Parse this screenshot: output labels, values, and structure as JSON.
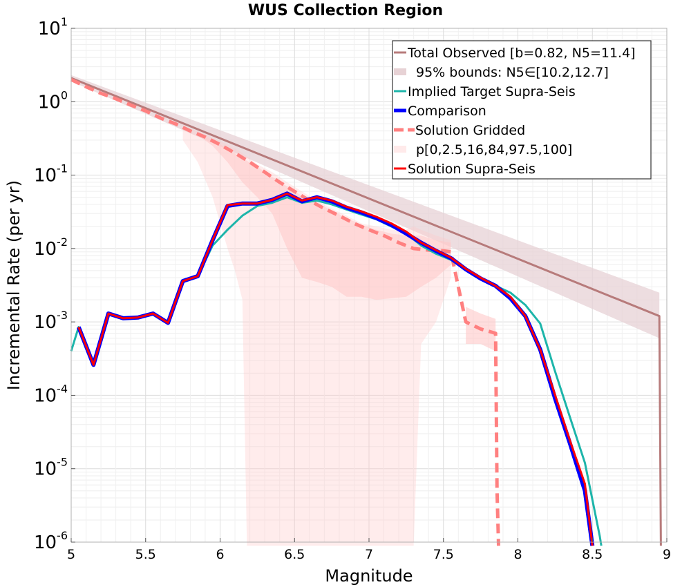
{
  "chart_data": {
    "type": "line",
    "title": "WUS Collection Region",
    "xlabel": "Magnitude",
    "ylabel": "Incremental Rate (per yr)",
    "xlim": [
      5,
      9
    ],
    "ylim_exponents": [
      -6,
      1
    ],
    "y_scale": "log",
    "grid": true,
    "legend_position": "top-right",
    "x_ticks": [
      "5",
      "5.5",
      "6",
      "6.5",
      "7",
      "7.5",
      "8",
      "8.5",
      "9"
    ],
    "y_ticks": [
      {
        "base": "10",
        "exp": "-6"
      },
      {
        "base": "10",
        "exp": "-5"
      },
      {
        "base": "10",
        "exp": "-4"
      },
      {
        "base": "10",
        "exp": "-3"
      },
      {
        "base": "10",
        "exp": "-2"
      },
      {
        "base": "10",
        "exp": "-1"
      },
      {
        "base": "10",
        "exp": "0"
      },
      {
        "base": "10",
        "exp": "1"
      }
    ],
    "legend": [
      {
        "label": "Total Observed [b=0.82, N5=11.4]",
        "key": "total_observed"
      },
      {
        "label": "95% bounds: N5∈[10.2,12.7]",
        "key": "total_bounds"
      },
      {
        "label": "Implied Target Supra-Seis",
        "key": "implied_target"
      },
      {
        "label": "Comparison",
        "key": "comparison"
      },
      {
        "label": "Solution Gridded",
        "key": "solution_gridded"
      },
      {
        "label": "p[0,2.5,16,84,97.5,100]",
        "key": "percentile_bands"
      },
      {
        "label": "Solution Supra-Seis",
        "key": "solution_supra"
      }
    ],
    "colors": {
      "total_observed": "#b77b7b",
      "total_bounds": "#e7d2d5",
      "implied_target": "#1db5aa",
      "comparison": "#0000ff",
      "solution_gridded": "#ff8080",
      "percentile_bands": "#ffc8c8",
      "solution_supra": "#ff0000"
    },
    "series": {
      "total_observed": {
        "x": [
          5.0,
          8.95,
          8.96
        ],
        "y": [
          2.1,
          0.0012,
          8e-07
        ]
      },
      "total_bounds": {
        "x": [
          5.0,
          8.95
        ],
        "upper": [
          2.3,
          0.0025
        ],
        "lower": [
          1.9,
          0.0006
        ]
      },
      "implied_target": {
        "x": [
          5.0,
          5.05,
          5.15,
          5.25,
          5.35,
          5.45,
          5.55,
          5.65,
          5.75,
          5.85,
          5.95,
          6.05,
          6.15,
          6.25,
          6.35,
          6.45,
          6.55,
          6.65,
          6.75,
          6.85,
          6.95,
          7.05,
          7.15,
          7.25,
          7.35,
          7.45,
          7.55,
          7.65,
          7.75,
          7.85,
          7.95,
          8.05,
          8.15,
          8.25,
          8.35,
          8.45,
          8.55,
          8.56
        ],
        "y": [
          0.0004,
          0.00085,
          0.00027,
          0.0013,
          0.00112,
          0.00115,
          0.0013,
          0.001,
          0.0036,
          0.0042,
          0.011,
          0.018,
          0.028,
          0.038,
          0.042,
          0.05,
          0.042,
          0.045,
          0.04,
          0.034,
          0.029,
          0.025,
          0.02,
          0.016,
          0.011,
          0.0085,
          0.007,
          0.0051,
          0.0039,
          0.0031,
          0.0025,
          0.0017,
          0.00095,
          0.00021,
          5e-05,
          1.2e-05,
          1.2e-06,
          8e-07
        ]
      },
      "comparison": {
        "x": [
          5.05,
          5.15,
          5.25,
          5.35,
          5.45,
          5.55,
          5.65,
          5.75,
          5.85,
          5.95,
          6.05,
          6.15,
          6.25,
          6.35,
          6.45,
          6.55,
          6.65,
          6.75,
          6.85,
          6.95,
          7.05,
          7.15,
          7.25,
          7.35,
          7.45,
          7.55,
          7.65,
          7.75,
          7.85,
          7.95,
          8.05,
          8.15,
          8.25,
          8.35,
          8.45,
          8.5
        ],
        "y": [
          0.00085,
          0.00026,
          0.0013,
          0.00112,
          0.00115,
          0.0013,
          0.00097,
          0.0036,
          0.0042,
          0.013,
          0.038,
          0.041,
          0.041,
          0.046,
          0.056,
          0.044,
          0.05,
          0.044,
          0.036,
          0.031,
          0.026,
          0.021,
          0.016,
          0.012,
          0.0093,
          0.0074,
          0.0052,
          0.0039,
          0.0031,
          0.0021,
          0.0012,
          0.00042,
          9e-05,
          2.2e-05,
          5e-06,
          8e-07
        ]
      },
      "solution_supra": {
        "x": [
          5.05,
          5.15,
          5.25,
          5.35,
          5.45,
          5.55,
          5.65,
          5.75,
          5.85,
          5.95,
          6.05,
          6.15,
          6.25,
          6.35,
          6.45,
          6.55,
          6.65,
          6.75,
          6.85,
          6.95,
          7.05,
          7.15,
          7.25,
          7.35,
          7.45,
          7.55,
          7.65,
          7.75,
          7.85,
          7.95,
          8.05,
          8.15,
          8.25,
          8.35,
          8.45,
          8.5
        ],
        "y": [
          0.00085,
          0.00026,
          0.0013,
          0.00112,
          0.00115,
          0.0013,
          0.00097,
          0.0036,
          0.0042,
          0.013,
          0.039,
          0.041,
          0.041,
          0.046,
          0.056,
          0.045,
          0.05,
          0.045,
          0.037,
          0.032,
          0.027,
          0.022,
          0.017,
          0.012,
          0.0095,
          0.0075,
          0.0053,
          0.004,
          0.0031,
          0.0022,
          0.0012,
          0.00042,
          0.0001,
          2.4e-05,
          6.2e-06,
          8e-07
        ]
      },
      "solution_gridded": {
        "x": [
          5.0,
          5.1,
          5.2,
          5.3,
          5.4,
          5.5,
          5.6,
          5.7,
          5.8,
          5.9,
          6.0,
          6.1,
          6.2,
          6.3,
          6.4,
          6.5,
          6.6,
          6.7,
          6.8,
          6.9,
          7.0,
          7.1,
          7.2,
          7.3,
          7.4,
          7.5,
          7.55,
          7.65,
          7.75,
          7.85,
          7.86,
          7.87
        ],
        "y": [
          2.0,
          1.6,
          1.3,
          1.1,
          0.9,
          0.75,
          0.6,
          0.5,
          0.4,
          0.33,
          0.26,
          0.2,
          0.15,
          0.11,
          0.08,
          0.06,
          0.045,
          0.035,
          0.028,
          0.022,
          0.018,
          0.015,
          0.012,
          0.01,
          0.0095,
          0.0093,
          0.009,
          0.001,
          0.0008,
          0.0007,
          5e-06,
          8e-07
        ]
      },
      "band_outer": {
        "x": [
          5.75,
          5.85,
          5.95,
          6.05,
          6.1,
          6.15,
          6.18,
          6.25,
          6.35,
          6.45,
          6.55,
          6.65,
          6.75,
          6.85,
          6.95,
          7.05,
          7.15,
          7.25,
          7.3,
          7.35,
          7.45,
          7.55
        ],
        "upper": [
          0.45,
          0.4,
          0.32,
          0.26,
          0.23,
          0.2,
          0.18,
          0.14,
          0.11,
          0.08,
          0.06,
          0.045,
          0.035,
          0.028,
          0.022,
          0.02,
          0.018,
          0.018,
          0.02,
          0.018,
          0.015,
          0.013
        ],
        "lower": [
          0.3,
          0.15,
          0.05,
          0.01,
          0.005,
          0.002,
          8e-07,
          8e-07,
          8e-07,
          8e-07,
          8e-07,
          8e-07,
          8e-07,
          8e-07,
          8e-07,
          8e-07,
          8e-07,
          8e-07,
          8e-07,
          0.0005,
          0.001,
          0.004
        ]
      },
      "band_inner": {
        "x": [
          5.85,
          5.95,
          6.05,
          6.15,
          6.25,
          6.35,
          6.45,
          6.55,
          6.65,
          6.75,
          6.85,
          6.95,
          7.05,
          7.15,
          7.25,
          7.35,
          7.45,
          7.55
        ],
        "upper": [
          0.38,
          0.3,
          0.23,
          0.17,
          0.13,
          0.095,
          0.07,
          0.052,
          0.042,
          0.033,
          0.026,
          0.021,
          0.018,
          0.016,
          0.015,
          0.015,
          0.013,
          0.012
        ],
        "lower": [
          0.35,
          0.25,
          0.15,
          0.08,
          0.05,
          0.03,
          0.01,
          0.004,
          0.0035,
          0.003,
          0.0022,
          0.0022,
          0.002,
          0.0021,
          0.0022,
          0.003,
          0.004,
          0.006
        ]
      },
      "band_tail": {
        "x": [
          7.65,
          7.75,
          7.85
        ],
        "upper": [
          0.0016,
          0.0013,
          0.0011
        ],
        "lower": [
          0.0005,
          0.0005,
          0.0004
        ]
      }
    }
  }
}
